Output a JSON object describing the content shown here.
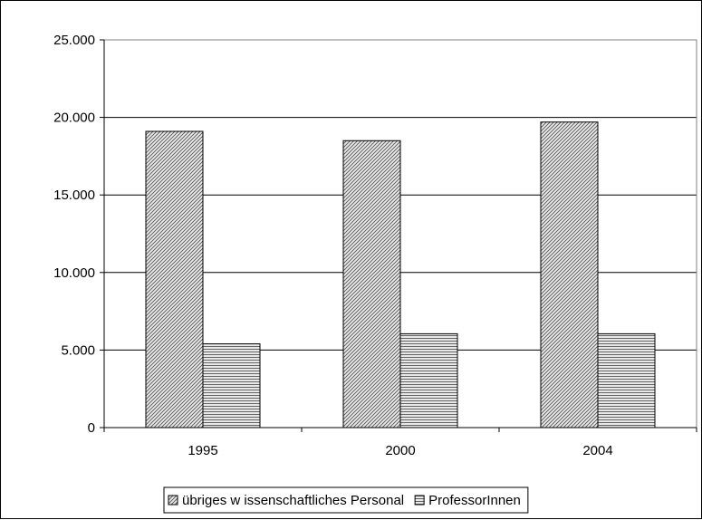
{
  "chart_data": {
    "type": "bar",
    "categories": [
      "1995",
      "2000",
      "2004"
    ],
    "series": [
      {
        "name": "übriges w issenschaftliches Personal",
        "values": [
          19100,
          18500,
          19700
        ],
        "pattern": "diagonal"
      },
      {
        "name": "ProfessorInnen",
        "values": [
          5400,
          6050,
          6050
        ],
        "pattern": "horizontal"
      }
    ],
    "ylim": [
      0,
      25000
    ],
    "yticks": [
      0,
      5000,
      10000,
      15000,
      20000,
      25000
    ],
    "ytick_labels": [
      "0",
      "5.000",
      "10.000",
      "15.000",
      "20.000",
      "25.000"
    ],
    "grid": true,
    "legend_position": "bottom",
    "title": "",
    "xlabel": "",
    "ylabel": "",
    "colors": {
      "bar_fill": "#d9d9d9",
      "bar_stroke": "#000000",
      "grid": "#000000"
    }
  }
}
